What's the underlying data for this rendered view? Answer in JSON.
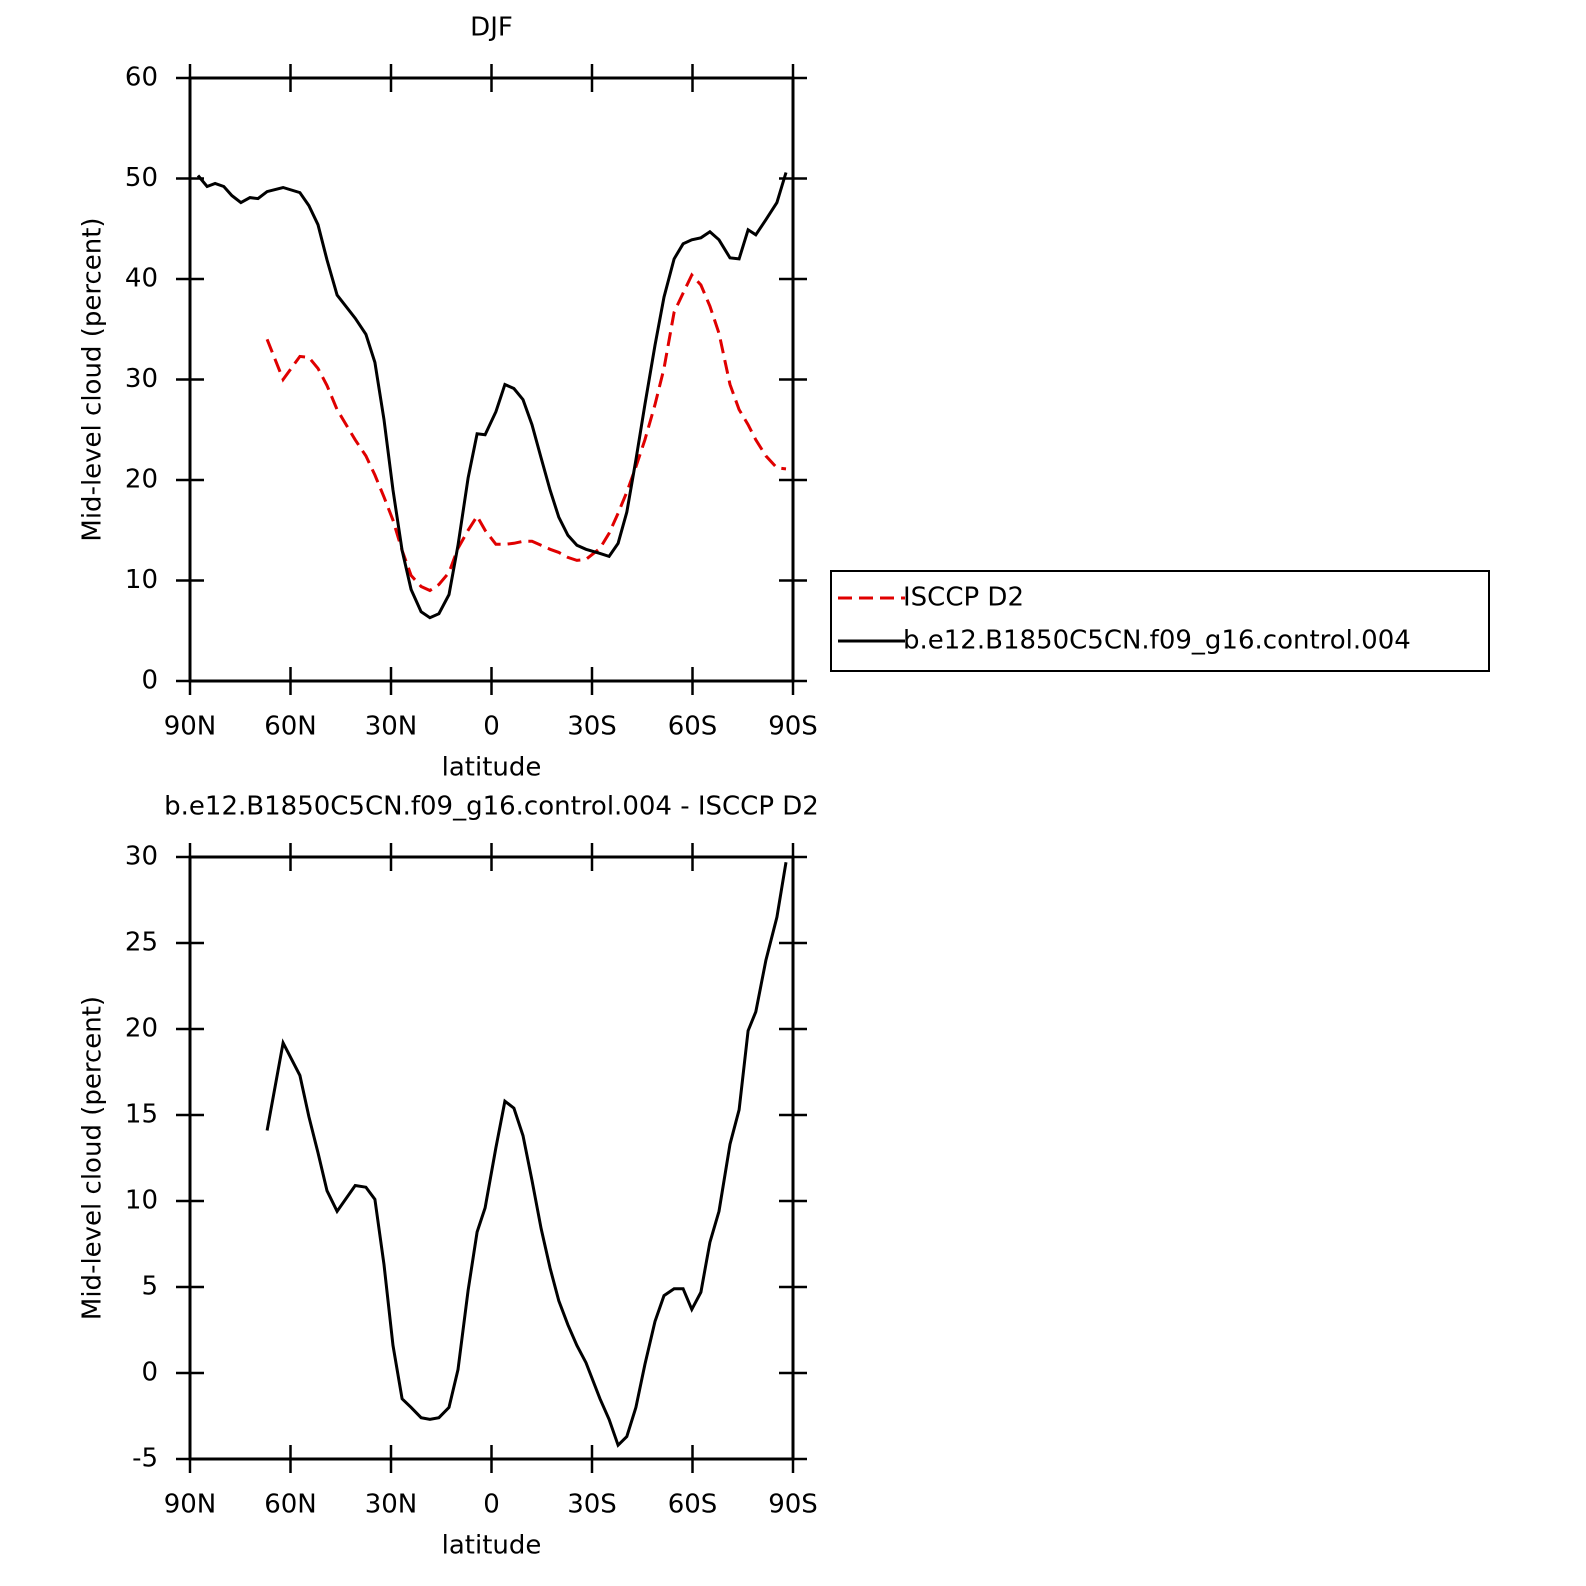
{
  "chart_data": [
    {
      "type": "line",
      "title": "DJF",
      "xlabel": "latitude",
      "ylabel": "Mid-level cloud (percent)",
      "x": [
        87.6,
        84.9,
        82.5,
        79.9,
        77.5,
        74.8,
        72.1,
        69.7,
        67.0,
        62.2,
        57.2,
        54.5,
        51.8,
        49.1,
        46.1,
        40.7,
        37.5,
        34.8,
        32.1,
        29.4,
        26.7,
        24.0,
        21.0,
        18.4,
        15.7,
        12.7,
        10.0,
        7.0,
        4.3,
        1.9,
        -1.3,
        -4.0,
        -6.7,
        -9.4,
        -12.1,
        -14.8,
        -17.5,
        -20.1,
        -22.8,
        -25.5,
        -28.2,
        -32.4,
        -35.1,
        -37.8,
        -40.4,
        -43.1,
        -45.8,
        -48.8,
        -51.5,
        -54.5,
        -57.2,
        -59.8,
        -62.5,
        -65.2,
        -67.9,
        -71.2,
        -73.9,
        -76.6,
        -78.9,
        -81.9,
        -85.2,
        -87.9
      ],
      "series": [
        {
          "name": "ISCCP D2",
          "color": "#e00000",
          "dash": "dashed",
          "values": [
            null,
            null,
            null,
            null,
            null,
            null,
            null,
            null,
            34.0,
            30.0,
            32.3,
            32.2,
            31.1,
            29.4,
            27.0,
            24.0,
            22.4,
            20.5,
            18.3,
            16.0,
            13.0,
            10.5,
            9.4,
            9.0,
            9.6,
            10.8,
            13.2,
            15.0,
            16.4,
            15.0,
            13.6,
            13.6,
            13.7,
            13.9,
            13.9,
            13.5,
            13.1,
            12.8,
            12.3,
            12.0,
            12.1,
            13.2,
            14.7,
            16.7,
            18.8,
            21.3,
            24.0,
            27.5,
            31.1,
            36.7,
            38.6,
            40.4,
            39.4,
            37.3,
            34.6,
            29.5,
            27.0,
            25.5,
            24.0,
            22.4,
            21.2,
            21.1
          ]
        },
        {
          "name": "b.e12.B1850C5CN.f09_g16.control.004",
          "color": "#000000",
          "dash": "solid",
          "values": [
            50.3,
            49.2,
            49.5,
            49.2,
            48.3,
            47.6,
            48.1,
            48.0,
            48.7,
            49.1,
            48.6,
            47.3,
            45.4,
            41.9,
            38.4,
            36.1,
            34.5,
            31.7,
            26.0,
            19.0,
            13.0,
            9.1,
            6.9,
            6.3,
            6.7,
            8.6,
            13.5,
            20.2,
            24.6,
            24.5,
            26.8,
            29.5,
            29.1,
            28.0,
            25.5,
            22.2,
            19.0,
            16.3,
            14.5,
            13.5,
            13.1,
            12.7,
            12.4,
            13.7,
            16.8,
            22.0,
            27.5,
            33.4,
            38.2,
            42.0,
            43.5,
            43.9,
            44.1,
            44.7,
            43.9,
            42.1,
            42.0,
            44.9,
            44.4,
            45.9,
            47.6,
            50.6
          ]
        }
      ],
      "xlim": [
        90,
        -90
      ],
      "xticks": [
        {
          "value": 90,
          "label": "90N"
        },
        {
          "value": 60,
          "label": "60N"
        },
        {
          "value": 30,
          "label": "30N"
        },
        0,
        {
          "value": -30,
          "label": "30S"
        },
        {
          "value": -60,
          "label": "60S"
        },
        {
          "value": -90,
          "label": "90S"
        }
      ],
      "ylim": [
        0,
        60
      ],
      "yticks": [
        0,
        10,
        20,
        30,
        40,
        50,
        60
      ],
      "legend": "right"
    },
    {
      "type": "line",
      "title": "b.e12.B1850C5CN.f09_g16.control.004 - ISCCP D2",
      "xlabel": "latitude",
      "ylabel": "Mid-level cloud (percent)",
      "x": [
        87.6,
        84.9,
        82.5,
        79.9,
        77.5,
        74.8,
        72.1,
        69.7,
        67.0,
        62.2,
        57.2,
        54.5,
        51.8,
        49.1,
        46.1,
        40.7,
        37.5,
        34.8,
        32.1,
        29.4,
        26.7,
        24.0,
        21.0,
        18.4,
        15.7,
        12.7,
        10.0,
        7.0,
        4.3,
        1.9,
        -1.3,
        -4.0,
        -6.7,
        -9.4,
        -12.1,
        -14.8,
        -17.5,
        -20.1,
        -22.8,
        -25.5,
        -28.2,
        -32.4,
        -35.1,
        -37.8,
        -40.4,
        -43.1,
        -45.8,
        -48.8,
        -51.5,
        -54.5,
        -57.2,
        -59.8,
        -62.5,
        -65.2,
        -67.9,
        -71.2,
        -73.9,
        -76.6,
        -78.9,
        -81.9,
        -85.2,
        -87.9
      ],
      "series": [
        {
          "color": "#000000",
          "dash": "solid",
          "values": [
            null,
            null,
            null,
            null,
            null,
            null,
            null,
            null,
            14.1,
            19.2,
            17.3,
            14.9,
            12.8,
            10.6,
            9.4,
            10.9,
            10.8,
            10.1,
            6.3,
            1.6,
            -1.5,
            -2.0,
            -2.6,
            -2.7,
            -2.6,
            -2.0,
            0.2,
            4.8,
            8.2,
            9.6,
            13.1,
            15.8,
            15.4,
            13.8,
            11.2,
            8.4,
            6.1,
            4.2,
            2.8,
            1.6,
            0.6,
            -1.5,
            -2.7,
            -4.2,
            -3.7,
            -2.0,
            0.5,
            3.0,
            4.5,
            4.9,
            4.9,
            3.7,
            4.7,
            7.6,
            9.4,
            13.3,
            15.3,
            19.9,
            21.0,
            24.0,
            26.5,
            29.7
          ]
        }
      ],
      "xlim": [
        90,
        -90
      ],
      "xticks": [
        {
          "value": 90,
          "label": "90N"
        },
        {
          "value": 60,
          "label": "60N"
        },
        {
          "value": 30,
          "label": "30N"
        },
        0,
        {
          "value": -30,
          "label": "30S"
        },
        {
          "value": -60,
          "label": "60S"
        },
        {
          "value": -90,
          "label": "90S"
        }
      ],
      "ylim": [
        -5,
        30
      ],
      "yticks": [
        -5,
        0,
        5,
        10,
        15,
        20,
        25,
        30
      ]
    }
  ]
}
